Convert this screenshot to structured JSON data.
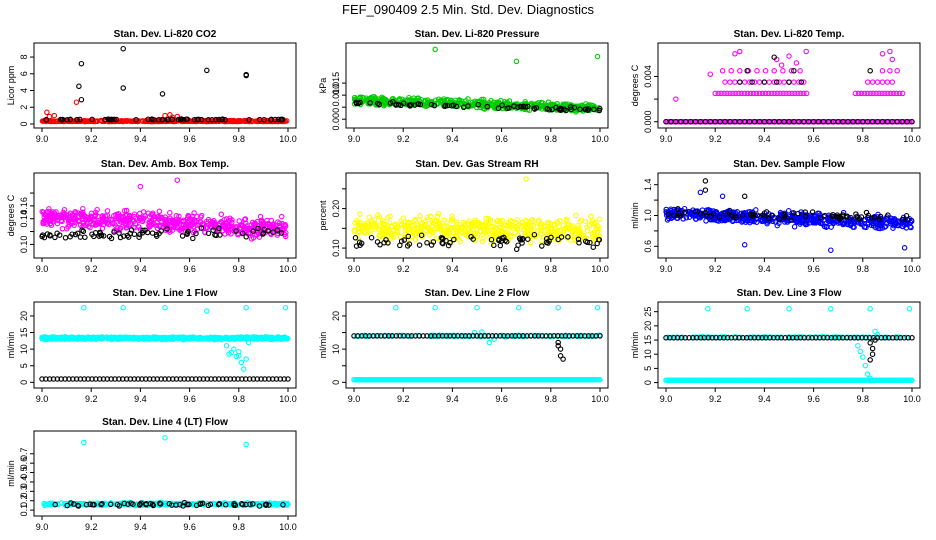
{
  "page_title": "FEF_090409  2.5 Min. Std. Dev. Diagnostics",
  "colors": {
    "red": "#ff0000",
    "green": "#00cc00",
    "magenta": "#ff00ff",
    "yellow": "#ffff00",
    "blue": "#0000ff",
    "cyan": "#00ffff",
    "black": "#000000"
  },
  "chart_data": [
    {
      "id": "co2",
      "type": "scatter",
      "title": "Stan. Dev. Li-820 CO2",
      "ylabel": "Licor ppm",
      "xlabel": "",
      "xlim": [
        9.0,
        10.0
      ],
      "ylim": [
        0,
        9.2
      ],
      "xticks": [
        9.0,
        9.2,
        9.4,
        9.6,
        9.8,
        10.0
      ],
      "xticklabels": [
        "9.0",
        "9.2",
        "9.4",
        "9.6",
        "9.8",
        "10.0"
      ],
      "yticks": [
        0,
        2,
        4,
        6,
        8
      ],
      "yticklabels": [
        "0",
        "2",
        "4",
        "6",
        "8"
      ],
      "color": "red",
      "base": {
        "level": 0.3,
        "spread": 0.15,
        "n": 420
      },
      "extra_points": [
        [
          9.02,
          1.4
        ],
        [
          9.03,
          0.9
        ],
        [
          9.14,
          2.6
        ],
        [
          9.5,
          1.0
        ],
        [
          9.52,
          1.1
        ],
        [
          9.53,
          0.8
        ],
        [
          9.05,
          1.0
        ],
        [
          9.55,
          0.9
        ]
      ],
      "black_base": {
        "level": 0.5,
        "spread": 0.12,
        "n": 60
      },
      "black_points": [
        [
          9.16,
          7.2
        ],
        [
          9.15,
          4.5
        ],
        [
          9.16,
          2.9
        ],
        [
          9.33,
          9.0
        ],
        [
          9.33,
          4.3
        ],
        [
          9.49,
          3.6
        ],
        [
          9.67,
          6.4
        ],
        [
          9.83,
          5.8
        ],
        [
          9.83,
          5.9
        ]
      ]
    },
    {
      "id": "pressure",
      "type": "scatter",
      "title": "Stan. Dev. Li-820 Pressure",
      "ylabel": "kPa",
      "xlabel": "",
      "xlim": [
        9.0,
        10.0
      ],
      "ylim": [
        -0.002,
        0.03
      ],
      "xticks": [
        9.0,
        9.2,
        9.4,
        9.6,
        9.8,
        10.0
      ],
      "xticklabels": [
        "9.0",
        "9.2",
        "9.4",
        "9.6",
        "9.8",
        "10.0"
      ],
      "yticks": [
        0,
        0.005,
        0.01,
        0.015
      ],
      "yticklabels": [
        "0.000",
        "",
        "0.010",
        "0.015"
      ],
      "color": "green",
      "band": {
        "start_level": 0.0078,
        "end_level": 0.0045,
        "spread": 0.0025,
        "n": 520
      },
      "extra_points": [
        [
          9.33,
          0.029
        ],
        [
          9.66,
          0.024
        ],
        [
          9.99,
          0.026
        ]
      ],
      "black_band": {
        "start_level": 0.0068,
        "end_level": 0.004,
        "spread": 0.0012,
        "n": 70
      },
      "black_points": []
    },
    {
      "id": "temp",
      "type": "scatter",
      "title": "Stan. Dev. Li-820 Temp.",
      "ylabel": "degrees C",
      "xlabel": "",
      "xlim": [
        9.0,
        10.0
      ],
      "ylim": [
        -0.0002,
        0.0066
      ],
      "xticks": [
        9.0,
        9.2,
        9.4,
        9.6,
        9.8,
        10.0
      ],
      "xticklabels": [
        "9.0",
        "9.2",
        "9.4",
        "9.6",
        "9.8",
        "10.0"
      ],
      "yticks": [
        0,
        0.002,
        0.004
      ],
      "yticklabels": [
        "0.000",
        "",
        "0.004"
      ],
      "color": "magenta",
      "levels": [
        {
          "y": 0.0,
          "x0": 9.0,
          "x1": 10.0,
          "step": 0.006,
          "color": "magenta"
        },
        {
          "y": 0.0,
          "x0": 9.0,
          "x1": 10.0,
          "step": 0.02,
          "color": "black"
        },
        {
          "y": 0.0025,
          "x0": 9.2,
          "x1": 9.58,
          "step": 0.012,
          "color": "magenta"
        },
        {
          "y": 0.0025,
          "x0": 9.77,
          "x1": 9.97,
          "step": 0.012,
          "color": "magenta"
        },
        {
          "y": 0.0035,
          "x0": 9.24,
          "x1": 9.56,
          "step": 0.02,
          "color": "magenta"
        },
        {
          "y": 0.0035,
          "x0": 9.82,
          "x1": 9.93,
          "step": 0.02,
          "color": "magenta"
        },
        {
          "y": 0.0035,
          "x0": 9.3,
          "x1": 9.55,
          "step": 0.05,
          "color": "black"
        },
        {
          "y": 0.0045,
          "x0": 9.23,
          "x1": 9.55,
          "step": 0.035,
          "color": "magenta"
        },
        {
          "y": 0.0045,
          "x0": 9.88,
          "x1": 9.94,
          "step": 0.03,
          "color": "magenta"
        }
      ],
      "extra_points": [
        [
          9.04,
          0.002
        ],
        [
          9.28,
          0.006
        ],
        [
          9.3,
          0.0062
        ],
        [
          9.45,
          0.0055
        ],
        [
          9.5,
          0.0058
        ],
        [
          9.53,
          0.0052
        ],
        [
          9.57,
          0.0062
        ],
        [
          9.88,
          0.006
        ],
        [
          9.91,
          0.0062
        ],
        [
          9.92,
          0.0055
        ],
        [
          9.18,
          0.0042
        ],
        [
          9.47,
          0.005
        ]
      ],
      "black_points": [
        [
          9.44,
          0.0057
        ],
        [
          9.33,
          0.0045
        ],
        [
          9.52,
          0.0045
        ],
        [
          9.83,
          0.0045
        ]
      ]
    },
    {
      "id": "boxtemp",
      "type": "scatter",
      "title": "Stan. Dev. Amb. Box Temp.",
      "ylabel": "degrees C",
      "xlabel": "",
      "xlim": [
        9.0,
        10.0
      ],
      "ylim": [
        0.085,
        0.205
      ],
      "xticks": [
        9.0,
        9.2,
        9.4,
        9.6,
        9.8,
        10.0
      ],
      "xticklabels": [
        "9.0",
        "9.2",
        "9.4",
        "9.6",
        "9.8",
        "10.0"
      ],
      "yticks": [
        0.1,
        0.12,
        0.14,
        0.16,
        0.18
      ],
      "yticklabels": [
        "0.10",
        "",
        "0.14",
        "0.16",
        ""
      ],
      "color": "magenta",
      "band": {
        "start_level": 0.142,
        "end_level": 0.125,
        "spread": 0.022,
        "n": 560
      },
      "extra_points": [
        [
          9.55,
          0.2
        ],
        [
          9.4,
          0.19
        ]
      ],
      "black_band": {
        "start_level": 0.115,
        "end_level": 0.12,
        "spread": 0.01,
        "n": 75
      },
      "black_points": []
    },
    {
      "id": "rh",
      "type": "scatter",
      "title": "Stan. Dev. Gas Stream RH",
      "ylabel": "percent",
      "xlabel": "",
      "xlim": [
        9.0,
        10.0
      ],
      "ylim": [
        0.085,
        0.28
      ],
      "xticks": [
        9.0,
        9.2,
        9.4,
        9.6,
        9.8,
        10.0
      ],
      "xticklabels": [
        "9.0",
        "9.2",
        "9.4",
        "9.6",
        "9.8",
        "10.0"
      ],
      "yticks": [
        0.1,
        0.15,
        0.2,
        0.25
      ],
      "yticklabels": [
        "0.10",
        "",
        "0.20",
        ""
      ],
      "color": "yellow",
      "band": {
        "start_level": 0.15,
        "end_level": 0.145,
        "spread": 0.045,
        "n": 520
      },
      "extra_points": [
        [
          9.7,
          0.275
        ]
      ],
      "black_band": {
        "start_level": 0.115,
        "end_level": 0.12,
        "spread": 0.025,
        "n": 70
      },
      "black_points": []
    },
    {
      "id": "sampleflow",
      "type": "scatter",
      "title": "Stan. Dev. Sample Flow",
      "ylabel": "ml/min",
      "xlabel": "",
      "xlim": [
        9.0,
        10.0
      ],
      "ylim": [
        0.5,
        1.5
      ],
      "xticks": [
        9.0,
        9.2,
        9.4,
        9.6,
        9.8,
        10.0
      ],
      "xticklabels": [
        "9.0",
        "9.2",
        "9.4",
        "9.6",
        "9.8",
        "10.0"
      ],
      "yticks": [
        0.6,
        0.8,
        1.0,
        1.2,
        1.4
      ],
      "yticklabels": [
        "0.6",
        "",
        "1.0",
        "",
        "1.4"
      ],
      "color": "blue",
      "band": {
        "start_level": 1.02,
        "end_level": 0.9,
        "spread": 0.12,
        "n": 560
      },
      "extra_points": [
        [
          9.32,
          0.62
        ],
        [
          9.97,
          0.58
        ],
        [
          9.67,
          0.55
        ],
        [
          9.14,
          1.3
        ],
        [
          9.23,
          1.25
        ]
      ],
      "black_band": {
        "start_level": 1.02,
        "end_level": 0.98,
        "spread": 0.08,
        "n": 70
      },
      "black_points": [
        [
          9.16,
          1.45
        ],
        [
          9.32,
          1.25
        ],
        [
          9.16,
          1.33
        ]
      ]
    },
    {
      "id": "line1",
      "type": "scatter",
      "title": "Stan. Dev. Line 1 Flow",
      "ylabel": "ml/min",
      "xlabel": "",
      "xlim": [
        9.0,
        10.0
      ],
      "ylim": [
        -0.5,
        23
      ],
      "xticks": [
        9.0,
        9.2,
        9.4,
        9.6,
        9.8,
        10.0
      ],
      "xticklabels": [
        "9.0",
        "9.2",
        "9.4",
        "9.6",
        "9.8",
        "10.0"
      ],
      "yticks": [
        0,
        5,
        10,
        15,
        20
      ],
      "yticklabels": [
        "0",
        "5",
        "10",
        "15",
        "20"
      ],
      "color": "cyan",
      "band": {
        "start_level": 13.3,
        "end_level": 13.3,
        "spread": 0.5,
        "n": 700
      },
      "extra_points": [
        [
          9.17,
          22.5
        ],
        [
          9.33,
          22.5
        ],
        [
          9.5,
          22.5
        ],
        [
          9.67,
          21.5
        ],
        [
          9.83,
          22.5
        ],
        [
          9.99,
          22.5
        ],
        [
          9.75,
          11
        ],
        [
          9.77,
          9
        ],
        [
          9.78,
          10
        ],
        [
          9.8,
          9.2
        ],
        [
          9.8,
          8
        ],
        [
          9.81,
          6
        ],
        [
          9.82,
          4
        ],
        [
          9.83,
          7
        ],
        [
          9.84,
          12
        ],
        [
          9.76,
          8.5
        ],
        [
          9.79,
          7.8
        ]
      ],
      "black_line": {
        "level": 1.0,
        "n": 65
      },
      "black_points": []
    },
    {
      "id": "line2",
      "type": "scatter",
      "title": "Stan. Dev. Line 2 Flow",
      "ylabel": "ml/min",
      "xlabel": "",
      "xlim": [
        9.0,
        10.0
      ],
      "ylim": [
        -0.5,
        23
      ],
      "xticks": [
        9.0,
        9.2,
        9.4,
        9.6,
        9.8,
        10.0
      ],
      "xticklabels": [
        "9.0",
        "9.2",
        "9.4",
        "9.6",
        "9.8",
        "10.0"
      ],
      "yticks": [
        0,
        5,
        10,
        15,
        20
      ],
      "yticklabels": [
        "0",
        "",
        "10",
        "",
        "20"
      ],
      "color": "cyan",
      "cyan_line": {
        "level": 0.8,
        "n": 200
      },
      "band": {
        "start_level": 14.0,
        "end_level": 14.0,
        "spread": 0.4,
        "n": 120
      },
      "extra_points": [
        [
          9.17,
          22.5
        ],
        [
          9.33,
          22.5
        ],
        [
          9.5,
          22.5
        ],
        [
          9.67,
          22.5
        ],
        [
          9.83,
          22.5
        ],
        [
          9.99,
          22.5
        ],
        [
          9.55,
          12
        ],
        [
          9.57,
          13
        ],
        [
          9.49,
          15
        ],
        [
          9.52,
          15.2
        ]
      ],
      "black_line": {
        "level": 14.0,
        "n": 65
      },
      "black_points": [
        [
          9.83,
          12
        ],
        [
          9.84,
          10
        ],
        [
          9.84,
          8
        ],
        [
          9.85,
          7
        ],
        [
          9.83,
          11
        ]
      ]
    },
    {
      "id": "line3",
      "type": "scatter",
      "title": "Stan. Dev. Line 3 Flow",
      "ylabel": "ml/min",
      "xlabel": "",
      "xlim": [
        9.0,
        10.0
      ],
      "ylim": [
        -0.5,
        27
      ],
      "xticks": [
        9.0,
        9.2,
        9.4,
        9.6,
        9.8,
        10.0
      ],
      "xticklabels": [
        "9.0",
        "9.2",
        "9.4",
        "9.6",
        "9.8",
        "10.0"
      ],
      "yticks": [
        0,
        5,
        10,
        15,
        20,
        25
      ],
      "yticklabels": [
        "0",
        "5",
        "10",
        "15",
        "20",
        "25"
      ],
      "color": "cyan",
      "cyan_line": {
        "level": 0.8,
        "n": 200
      },
      "band": {
        "start_level": 16.0,
        "end_level": 16.0,
        "spread": 0.3,
        "n": 100
      },
      "extra_points": [
        [
          9.17,
          26
        ],
        [
          9.33,
          26
        ],
        [
          9.5,
          26
        ],
        [
          9.67,
          26
        ],
        [
          9.83,
          26
        ],
        [
          9.99,
          26
        ],
        [
          9.82,
          3
        ],
        [
          9.81,
          6
        ],
        [
          9.8,
          9
        ],
        [
          9.79,
          11
        ],
        [
          9.83,
          1.5
        ],
        [
          9.85,
          18
        ],
        [
          9.86,
          17
        ],
        [
          9.78,
          13
        ]
      ],
      "black_line": {
        "level": 15.8,
        "n": 65
      },
      "black_points": [
        [
          9.83,
          14
        ],
        [
          9.84,
          12
        ],
        [
          9.84,
          10
        ],
        [
          9.83,
          8
        ],
        [
          9.85,
          15
        ]
      ]
    },
    {
      "id": "line4",
      "type": "scatter",
      "title": "Stan. Dev. Line 4 (LT) Flow",
      "ylabel": "ml/min",
      "xlabel": "",
      "xlim": [
        9.0,
        10.0
      ],
      "ylim": [
        0.08,
        0.9
      ],
      "xticks": [
        9.0,
        9.2,
        9.4,
        9.6,
        9.8,
        10.0
      ],
      "xticklabels": [
        "9.0",
        "9.2",
        "9.4",
        "9.6",
        "9.8",
        "10.0"
      ],
      "yticks": [
        0.1,
        0.2,
        0.3,
        0.4,
        0.5,
        0.6,
        0.7
      ],
      "yticklabels": [
        "0.1",
        "0.2",
        "0.3",
        "0.4",
        "0.5",
        "0.6",
        "0.7"
      ],
      "color": "cyan",
      "band": {
        "start_level": 0.165,
        "end_level": 0.165,
        "spread": 0.02,
        "n": 300
      },
      "extra_points": [
        [
          9.17,
          0.82
        ],
        [
          9.5,
          0.87
        ],
        [
          9.83,
          0.8
        ]
      ],
      "black_band": {
        "start_level": 0.16,
        "end_level": 0.16,
        "spread": 0.025,
        "n": 60
      },
      "black_points": []
    }
  ]
}
